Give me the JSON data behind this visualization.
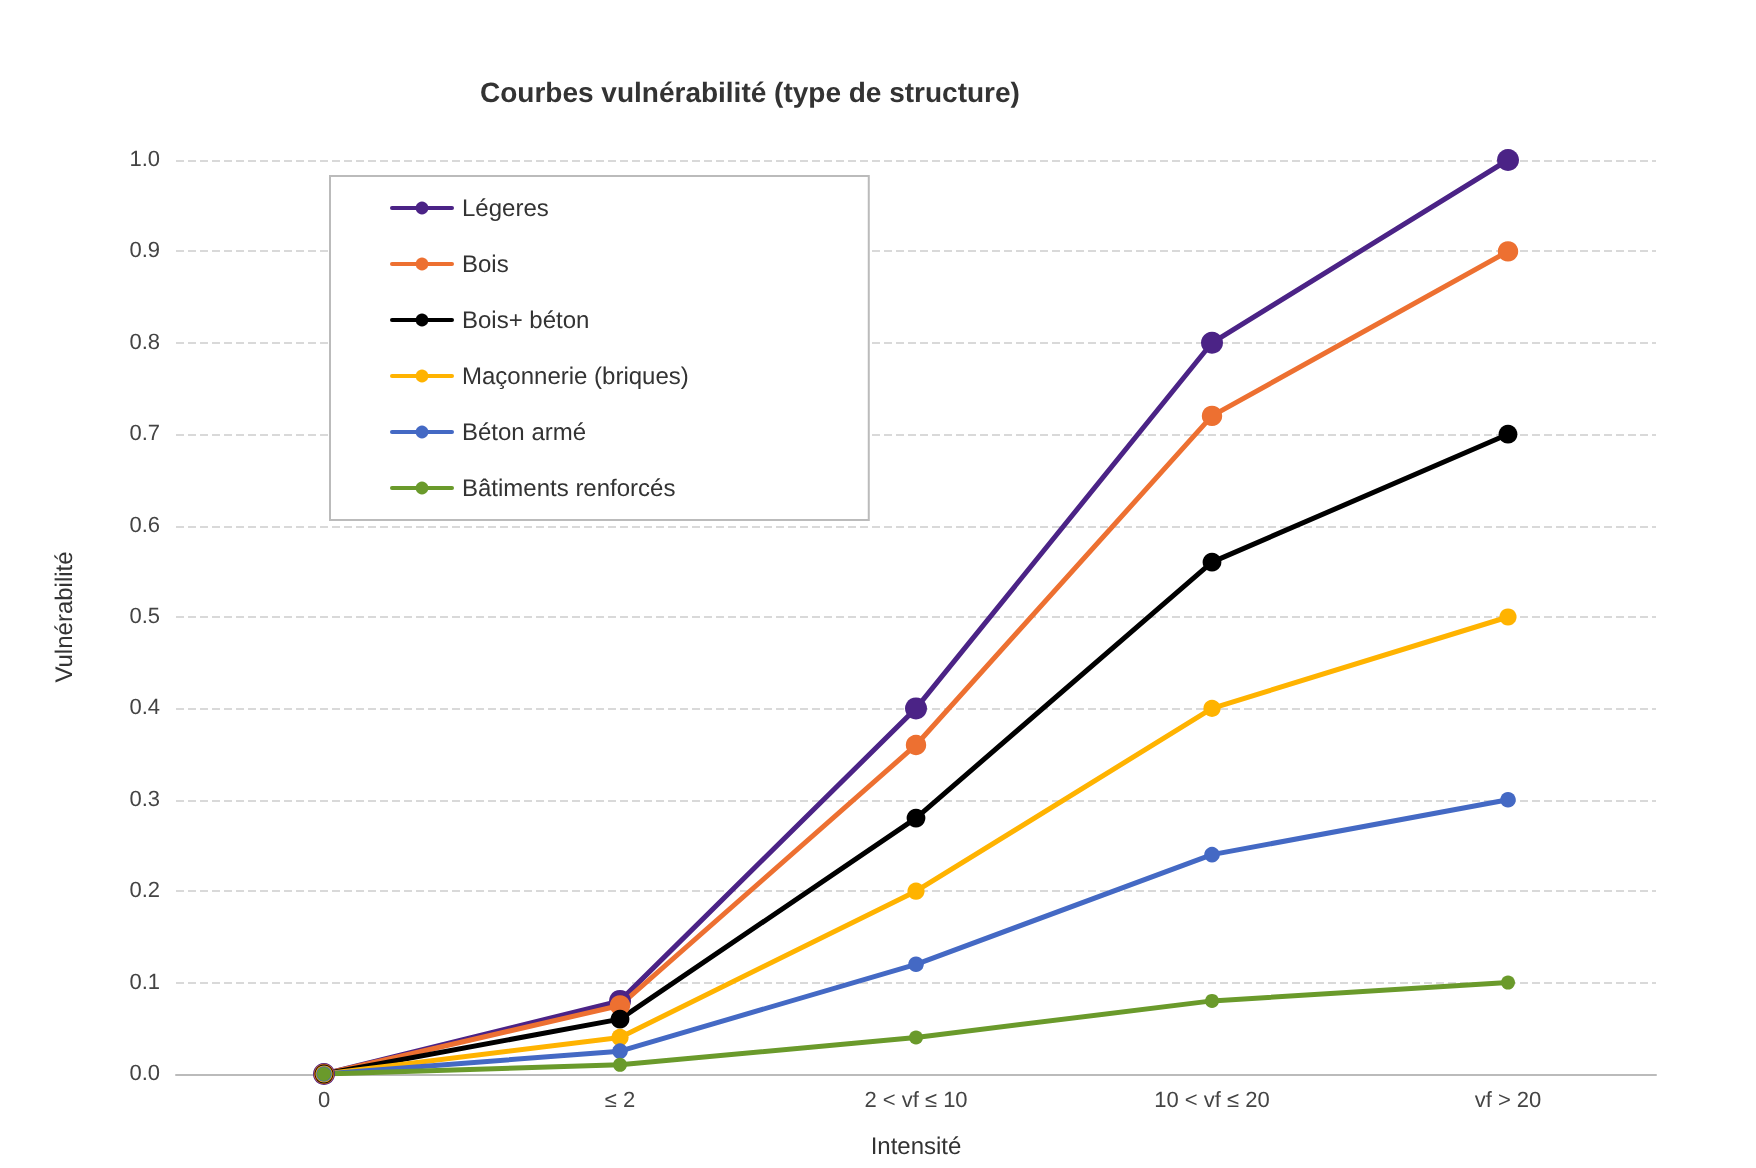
{
  "chart_data": {
    "type": "line",
    "title": "Courbes vulnérabilité (type de structure)",
    "xlabel": "Intensité",
    "ylabel": "Vulnérabilité",
    "categories": [
      "0",
      "≤ 2",
      "2 < vf ≤ 10",
      "10 < vf ≤ 20",
      "vf > 20"
    ],
    "series": [
      {
        "name": "Légeres",
        "color": "#4b2386",
        "values": [
          0,
          0.08,
          0.4,
          0.8,
          1.0
        ]
      },
      {
        "name": "Bois",
        "color": "#ed7031",
        "values": [
          0,
          0.075,
          0.36,
          0.72,
          0.9
        ]
      },
      {
        "name": "Bois+ béton",
        "color": "#000000",
        "values": [
          0,
          0.06,
          0.28,
          0.56,
          0.7
        ]
      },
      {
        "name": "Maçonnerie (briques)",
        "color": "#ffb300",
        "values": [
          0,
          0.04,
          0.2,
          0.4,
          0.5
        ]
      },
      {
        "name": "Béton armé",
        "color": "#4469c4",
        "values": [
          0,
          0.025,
          0.12,
          0.24,
          0.3
        ]
      },
      {
        "name": "Bâtiments renforcés",
        "color": "#6a9a2b",
        "values": [
          0,
          0.01,
          0.04,
          0.08,
          0.1
        ]
      }
    ],
    "ylim": [
      0,
      1.0
    ],
    "yticks": [
      {
        "value": 0,
        "label": "0.0"
      },
      0.1,
      0.2,
      0.3,
      0.4,
      0.5,
      0.6,
      0.7,
      0.8,
      0.9,
      {
        "value": 1,
        "label": "1.0"
      }
    ],
    "grid": "y",
    "legend": "top left",
    "marker": "circle",
    "line_style": "solid"
  }
}
